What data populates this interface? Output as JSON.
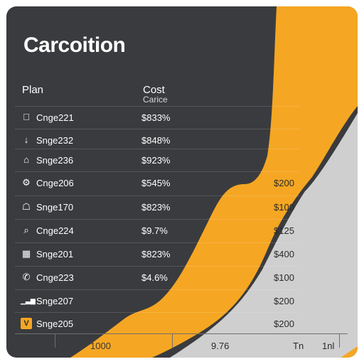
{
  "title": "Carcoition",
  "columns": {
    "plan": "Plan",
    "cost": "Cost",
    "cost_sub": "Carice"
  },
  "rows": [
    {
      "icon": "apple-icon",
      "glyph": "",
      "plan": "Cnge221",
      "cost": "$833%",
      "price": ""
    },
    {
      "icon": "download-arrow-icon",
      "glyph": "↓",
      "plan": "Snge232",
      "cost": "$848%",
      "price": ""
    },
    {
      "icon": "inbox-icon",
      "glyph": "⌂",
      "plan": "Snge236",
      "cost": "$923%",
      "price": ""
    },
    {
      "icon": "settings-icon",
      "glyph": "⚙",
      "plan": "Cnge206",
      "cost": "$545%",
      "price": "$200"
    },
    {
      "icon": "lock-icon",
      "glyph": "☖",
      "plan": "Snge170",
      "cost": "$823%",
      "price": "$100"
    },
    {
      "icon": "search-icon",
      "glyph": "⌕",
      "plan": "Cnge224",
      "cost": "$9.7%",
      "price": "$125"
    },
    {
      "icon": "calendar-icon",
      "glyph": "▦",
      "plan": "Snge201",
      "cost": "$823%",
      "price": "$400"
    },
    {
      "icon": "phone-icon",
      "glyph": "✆",
      "plan": "Cnge223",
      "cost": "$4.6%",
      "price": "$100"
    },
    {
      "icon": "signal-bars-icon",
      "glyph": "▁▃▆",
      "plan": "Snge207",
      "cost": "",
      "price": "$200"
    },
    {
      "icon": "v-badge-icon",
      "glyph": "V",
      "plan": "Snge205",
      "cost": "",
      "price": "$200"
    }
  ],
  "axis": {
    "labels": [
      "1000",
      "9.76",
      "Tn",
      "1nl"
    ]
  },
  "colors": {
    "card": "#3a3b3e",
    "accent": "#f5a623",
    "area_grey": "#cfcfcf"
  }
}
